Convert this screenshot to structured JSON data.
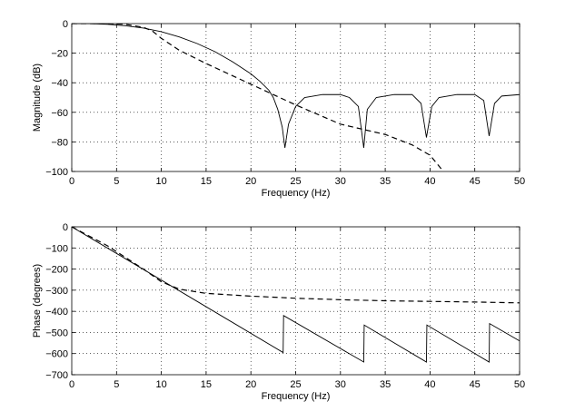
{
  "chart_data": [
    {
      "type": "line",
      "xlabel": "Frequency (Hz)",
      "ylabel": "Magnitude (dB)",
      "xlim": [
        0,
        50
      ],
      "ylim": [
        -100,
        0
      ],
      "xticks": [
        "0",
        "5",
        "10",
        "15",
        "20",
        "25",
        "30",
        "35",
        "40",
        "45",
        "50"
      ],
      "yticks": [
        "0",
        "−20",
        "−40",
        "−60",
        "−80",
        "−100"
      ],
      "grid": true,
      "series": [
        {
          "style": "solid",
          "x": [
            0,
            2,
            4,
            6,
            8,
            10,
            12,
            14,
            16,
            18,
            19,
            20,
            21,
            22,
            22.5,
            23,
            23.5,
            23.8,
            24.2,
            25,
            26,
            28,
            30,
            31,
            32,
            32.6,
            33,
            34,
            36,
            38,
            39,
            39.6,
            40.2,
            41,
            43,
            45,
            46,
            46.6,
            47.2,
            48,
            50
          ],
          "y": [
            0,
            0,
            -0.5,
            -1.5,
            -3,
            -5.5,
            -9,
            -13.5,
            -19,
            -26,
            -30,
            -34,
            -39,
            -45,
            -50,
            -58,
            -70,
            -84,
            -68,
            -56,
            -50,
            -48,
            -48,
            -50,
            -56,
            -84,
            -58,
            -50,
            -48,
            -48,
            -54,
            -77,
            -56,
            -50,
            -48,
            -48,
            -52,
            -76,
            -54,
            -49,
            -48
          ]
        },
        {
          "style": "dashed",
          "x": [
            0,
            4,
            6,
            8,
            9,
            10,
            12,
            15,
            20,
            25,
            30,
            35,
            38,
            40,
            41.5
          ],
          "y": [
            0,
            0,
            -0.5,
            -2.5,
            -5,
            -10,
            -18,
            -27,
            -41,
            -55,
            -68,
            -75,
            -82,
            -89,
            -100
          ]
        }
      ]
    },
    {
      "type": "line",
      "xlabel": "Frequency (Hz)",
      "ylabel": "Phase (degrees)",
      "xlim": [
        0,
        50
      ],
      "ylim": [
        -700,
        0
      ],
      "xticks": [
        "0",
        "5",
        "10",
        "15",
        "20",
        "25",
        "30",
        "35",
        "40",
        "45",
        "50"
      ],
      "yticks": [
        "0",
        "−100",
        "−200",
        "−300",
        "−400",
        "−500",
        "−600",
        "−700"
      ],
      "grid": true,
      "series": [
        {
          "style": "solid",
          "x": [
            0,
            23.6,
            23.65,
            32.6,
            32.65,
            39.6,
            39.65,
            46.6,
            46.65,
            50
          ],
          "y": [
            0,
            -595,
            -420,
            -640,
            -465,
            -640,
            -465,
            -640,
            -458,
            -540
          ]
        },
        {
          "style": "dashed",
          "x": [
            0,
            4,
            8,
            10,
            12,
            15,
            20,
            25,
            30,
            35,
            40,
            45,
            50
          ],
          "y": [
            0,
            -90,
            -200,
            -260,
            -295,
            -315,
            -328,
            -338,
            -345,
            -350,
            -353,
            -356,
            -360
          ]
        }
      ]
    }
  ]
}
